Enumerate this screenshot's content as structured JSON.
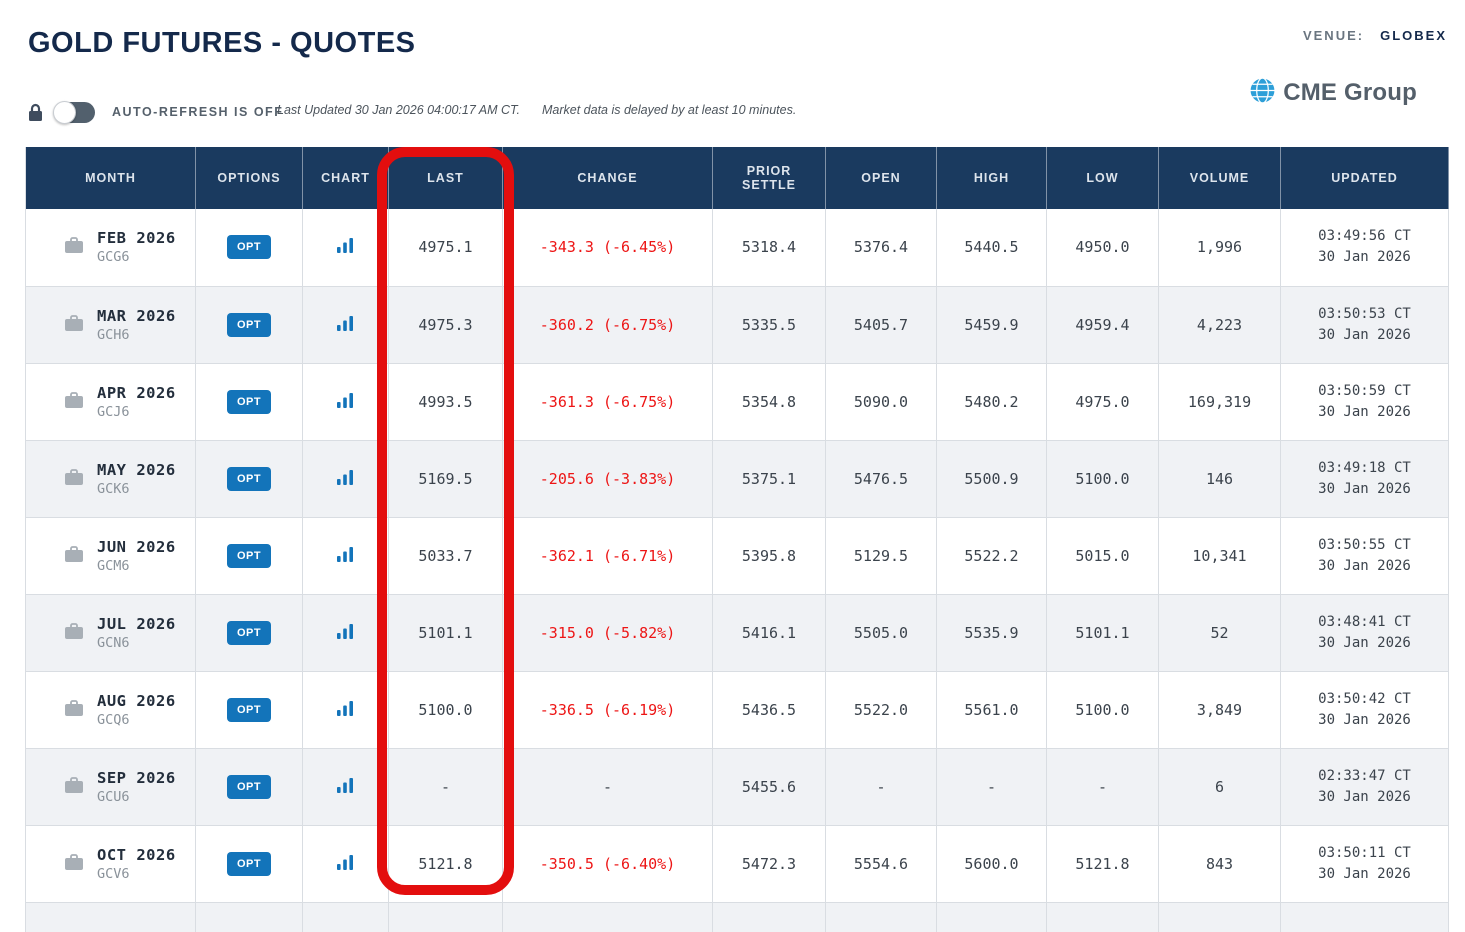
{
  "page": {
    "title": "GOLD FUTURES - QUOTES",
    "venue_label": "VENUE:",
    "venue_value": "GLOBEX",
    "logo_text": "CME Group",
    "auto_refresh_label": "AUTO-REFRESH IS OFF",
    "last_updated": "Last Updated 30 Jan 2026 04:00:17 AM CT.",
    "delay_notice": "Market data is delayed by at least 10 minutes."
  },
  "colors": {
    "navy_header": "#1a3a5f",
    "accent_blue": "#1374ba",
    "logo_blue": "#2d9fd8",
    "negative_red": "#ed1515",
    "highlight_red": "#e30e0e",
    "title_navy": "#14294b"
  },
  "table": {
    "columns": [
      "MONTH",
      "OPTIONS",
      "CHART",
      "LAST",
      "CHANGE",
      "PRIOR SETTLE",
      "OPEN",
      "HIGH",
      "LOW",
      "VOLUME",
      "UPDATED"
    ],
    "opt_label": "OPT",
    "rows": [
      {
        "month": "FEB 2026",
        "code": "GCG6",
        "last": "4975.1",
        "change": "-343.3 (-6.45%)",
        "prior_settle": "5318.4",
        "open": "5376.4",
        "high": "5440.5",
        "low": "4950.0",
        "volume": "1,996",
        "updated_time": "03:49:56 CT",
        "updated_date": "30 Jan 2026"
      },
      {
        "month": "MAR 2026",
        "code": "GCH6",
        "last": "4975.3",
        "change": "-360.2 (-6.75%)",
        "prior_settle": "5335.5",
        "open": "5405.7",
        "high": "5459.9",
        "low": "4959.4",
        "volume": "4,223",
        "updated_time": "03:50:53 CT",
        "updated_date": "30 Jan 2026"
      },
      {
        "month": "APR 2026",
        "code": "GCJ6",
        "last": "4993.5",
        "change": "-361.3 (-6.75%)",
        "prior_settle": "5354.8",
        "open": "5090.0",
        "high": "5480.2",
        "low": "4975.0",
        "volume": "169,319",
        "updated_time": "03:50:59 CT",
        "updated_date": "30 Jan 2026"
      },
      {
        "month": "MAY 2026",
        "code": "GCK6",
        "last": "5169.5",
        "change": "-205.6 (-3.83%)",
        "prior_settle": "5375.1",
        "open": "5476.5",
        "high": "5500.9",
        "low": "5100.0",
        "volume": "146",
        "updated_time": "03:49:18 CT",
        "updated_date": "30 Jan 2026"
      },
      {
        "month": "JUN 2026",
        "code": "GCM6",
        "last": "5033.7",
        "change": "-362.1 (-6.71%)",
        "prior_settle": "5395.8",
        "open": "5129.5",
        "high": "5522.2",
        "low": "5015.0",
        "volume": "10,341",
        "updated_time": "03:50:55 CT",
        "updated_date": "30 Jan 2026"
      },
      {
        "month": "JUL 2026",
        "code": "GCN6",
        "last": "5101.1",
        "change": "-315.0 (-5.82%)",
        "prior_settle": "5416.1",
        "open": "5505.0",
        "high": "5535.9",
        "low": "5101.1",
        "volume": "52",
        "updated_time": "03:48:41 CT",
        "updated_date": "30 Jan 2026"
      },
      {
        "month": "AUG 2026",
        "code": "GCQ6",
        "last": "5100.0",
        "change": "-336.5 (-6.19%)",
        "prior_settle": "5436.5",
        "open": "5522.0",
        "high": "5561.0",
        "low": "5100.0",
        "volume": "3,849",
        "updated_time": "03:50:42 CT",
        "updated_date": "30 Jan 2026"
      },
      {
        "month": "SEP 2026",
        "code": "GCU6",
        "last": "-",
        "change": "-",
        "prior_settle": "5455.6",
        "open": "-",
        "high": "-",
        "low": "-",
        "volume": "6",
        "updated_time": "02:33:47 CT",
        "updated_date": "30 Jan 2026"
      },
      {
        "month": "OCT 2026",
        "code": "GCV6",
        "last": "5121.8",
        "change": "-350.5 (-6.40%)",
        "prior_settle": "5472.3",
        "open": "5554.6",
        "high": "5600.0",
        "low": "5121.8",
        "volume": "843",
        "updated_time": "03:50:11 CT",
        "updated_date": "30 Jan 2026"
      }
    ]
  }
}
